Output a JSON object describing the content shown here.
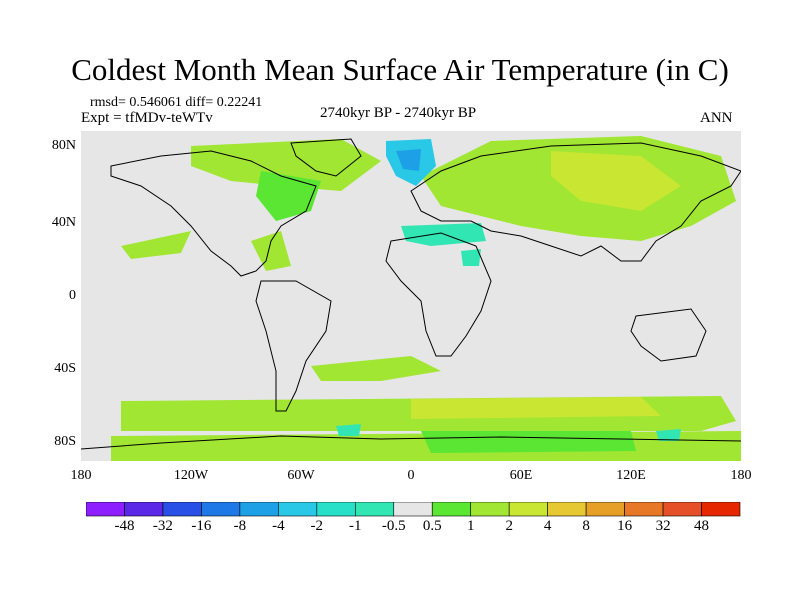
{
  "title": "Coldest Month Mean Surface Air Temperature (in C)",
  "stats": "rmsd= 0.546061 diff= 0.22241",
  "experiment": "Expt = tfMDv-teWTv",
  "period": "2740kyr BP - 2740kyr BP",
  "season": "ANN",
  "map": {
    "projection": "cylindrical equidistant",
    "lat_range": [
      -90,
      90
    ],
    "lon_range": [
      -180,
      180
    ],
    "y_ticks": [
      "80N",
      "40N",
      "0",
      "40S",
      "80S"
    ],
    "x_ticks": [
      "180",
      "120W",
      "60W",
      "0",
      "60E",
      "120E",
      "180"
    ],
    "ocean_neutral_color": "#e6e6e6",
    "coastline_color": "#000000"
  },
  "colorbar": {
    "labels": [
      "-48",
      "-32",
      "-16",
      "-8",
      "-4",
      "-2",
      "-1",
      "-0.5",
      "0.5",
      "1",
      "2",
      "4",
      "8",
      "16",
      "32",
      "48"
    ],
    "colors": [
      "#8c1eff",
      "#5a28e6",
      "#2850e6",
      "#1e78e6",
      "#1ea0e6",
      "#28c8e6",
      "#28e0c8",
      "#32e6b4",
      "#e6e6e6",
      "#5ae632",
      "#a0e632",
      "#c8e632",
      "#e6c832",
      "#e6a028",
      "#e67828",
      "#e65028",
      "#e62800"
    ]
  }
}
